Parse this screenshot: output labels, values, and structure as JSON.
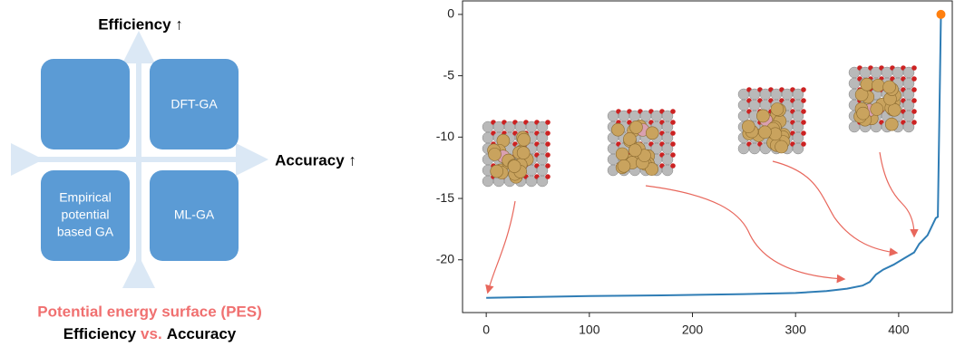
{
  "diagram": {
    "y_axis_label": "Efficiency ↑",
    "x_axis_label": "Accuracy ↑",
    "quadrants": {
      "top_right": "DFT-GA",
      "bottom_left": [
        "Empirical",
        "potential",
        "based GA"
      ],
      "bottom_right": "ML-GA"
    },
    "caption": {
      "line1": "Potential energy surface (PES)",
      "line2": [
        "Efficiency",
        "vs.",
        "Accuracy"
      ]
    }
  },
  "chart_data": {
    "type": "line",
    "x": [
      0,
      30,
      100,
      170,
      250,
      300,
      330,
      350,
      365,
      372,
      378,
      385,
      395,
      405,
      415,
      420,
      428,
      432,
      436,
      438,
      441
    ],
    "series": [
      {
        "color": "#2f7db5",
        "values": [
          -23.1,
          -23.05,
          -22.95,
          -22.9,
          -22.8,
          -22.7,
          -22.55,
          -22.35,
          -22.1,
          -21.8,
          -21.2,
          -20.8,
          -20.4,
          -19.9,
          -19.4,
          -18.7,
          -18.0,
          -17.3,
          -16.6,
          -16.5,
          0
        ]
      }
    ],
    "highlight_point": {
      "x": 441,
      "y": 0,
      "color": "#ff7f0e"
    },
    "xlim": [
      -23,
      452
    ],
    "ylim": [
      -24.3,
      1.1
    ],
    "xticks": [
      0,
      100,
      200,
      300,
      400
    ],
    "yticks": [
      0,
      -5,
      -10,
      -15,
      -20
    ]
  }
}
